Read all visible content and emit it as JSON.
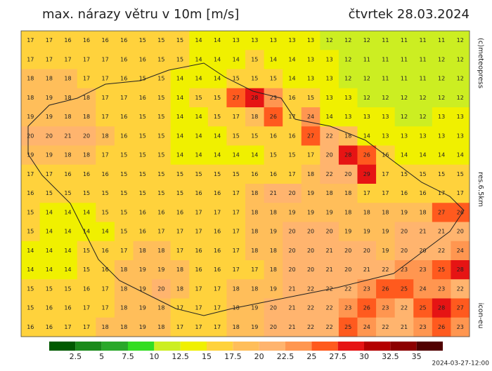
{
  "header": {
    "title": "max. nárazy větru v 10m [m/s]",
    "date": "čtvrtek 28.03.2024"
  },
  "side_labels": {
    "copyright": "(c)meteopress",
    "resolution": "res.6.5km",
    "model": "icon-eu"
  },
  "run_time": "2024-03-27-12:00",
  "colorbar": {
    "colors": [
      "#005a00",
      "#1a8a1a",
      "#2aa82a",
      "#33dd22",
      "#ccee22",
      "#f0f000",
      "#ffd23c",
      "#ffbe5a",
      "#ffb46e",
      "#ff9650",
      "#ff5a1e",
      "#e61414",
      "#b40000",
      "#8c0000",
      "#500000"
    ],
    "ticks": [
      2.5,
      5,
      7.5,
      10,
      12.5,
      15,
      17.5,
      20,
      22.5,
      25,
      27.5,
      30,
      32.5,
      35
    ]
  },
  "grid": [
    [
      17,
      17,
      16,
      16,
      16,
      16,
      15,
      15,
      15,
      14,
      14,
      13,
      13,
      13,
      13,
      13,
      12,
      12,
      12,
      11,
      11,
      11,
      11,
      12
    ],
    [
      17,
      17,
      17,
      17,
      17,
      16,
      16,
      15,
      15,
      14,
      14,
      14,
      15,
      14,
      14,
      13,
      13,
      12,
      11,
      11,
      11,
      11,
      12,
      12
    ],
    [
      18,
      18,
      18,
      17,
      17,
      16,
      15,
      15,
      14,
      14,
      14,
      15,
      15,
      15,
      14,
      13,
      13,
      12,
      12,
      11,
      11,
      11,
      12,
      12
    ],
    [
      18,
      19,
      18,
      18,
      17,
      17,
      16,
      15,
      14,
      15,
      15,
      27,
      28,
      23,
      16,
      15,
      13,
      13,
      12,
      12,
      12,
      12,
      12,
      12
    ],
    [
      19,
      19,
      18,
      18,
      17,
      16,
      15,
      15,
      14,
      14,
      15,
      17,
      18,
      26,
      17,
      24,
      14,
      13,
      13,
      13,
      12,
      12,
      13,
      13
    ],
    [
      20,
      20,
      21,
      20,
      18,
      16,
      15,
      15,
      14,
      14,
      14,
      15,
      15,
      16,
      16,
      27,
      22,
      18,
      14,
      13,
      13,
      13,
      13,
      13
    ],
    [
      19,
      19,
      18,
      18,
      17,
      15,
      15,
      15,
      14,
      14,
      14,
      14,
      14,
      15,
      15,
      17,
      20,
      28,
      26,
      16,
      14,
      14,
      14,
      14
    ],
    [
      17,
      17,
      16,
      16,
      16,
      15,
      15,
      15,
      15,
      15,
      15,
      15,
      16,
      16,
      17,
      18,
      22,
      20,
      29,
      17,
      15,
      15,
      15,
      15
    ],
    [
      16,
      15,
      15,
      15,
      15,
      15,
      15,
      15,
      15,
      16,
      16,
      17,
      18,
      21,
      20,
      19,
      18,
      18,
      17,
      17,
      16,
      16,
      17,
      17
    ],
    [
      15,
      14,
      14,
      14,
      15,
      15,
      16,
      16,
      16,
      17,
      17,
      17,
      18,
      18,
      19,
      19,
      19,
      18,
      18,
      18,
      19,
      18,
      27,
      26
    ],
    [
      15,
      14,
      14,
      14,
      14,
      15,
      16,
      17,
      17,
      17,
      16,
      17,
      18,
      19,
      20,
      20,
      20,
      19,
      19,
      19,
      20,
      21,
      21,
      20
    ],
    [
      14,
      14,
      14,
      15,
      16,
      17,
      18,
      18,
      17,
      16,
      16,
      17,
      18,
      18,
      20,
      20,
      21,
      20,
      20,
      19,
      20,
      20,
      22,
      24
    ],
    [
      14,
      14,
      14,
      15,
      16,
      18,
      19,
      19,
      18,
      16,
      16,
      17,
      17,
      18,
      20,
      20,
      21,
      20,
      21,
      22,
      23,
      23,
      25,
      28
    ],
    [
      15,
      15,
      15,
      16,
      17,
      18,
      19,
      20,
      18,
      17,
      17,
      18,
      18,
      19,
      21,
      22,
      22,
      22,
      23,
      26,
      25,
      24,
      23,
      22
    ],
    [
      15,
      16,
      16,
      17,
      17,
      18,
      19,
      18,
      17,
      17,
      17,
      18,
      19,
      20,
      21,
      22,
      22,
      23,
      26,
      23,
      22,
      25,
      28,
      27
    ],
    [
      16,
      16,
      17,
      17,
      18,
      18,
      19,
      18,
      17,
      17,
      17,
      18,
      19,
      20,
      21,
      22,
      22,
      25,
      24,
      22,
      21,
      23,
      26,
      23
    ]
  ]
}
